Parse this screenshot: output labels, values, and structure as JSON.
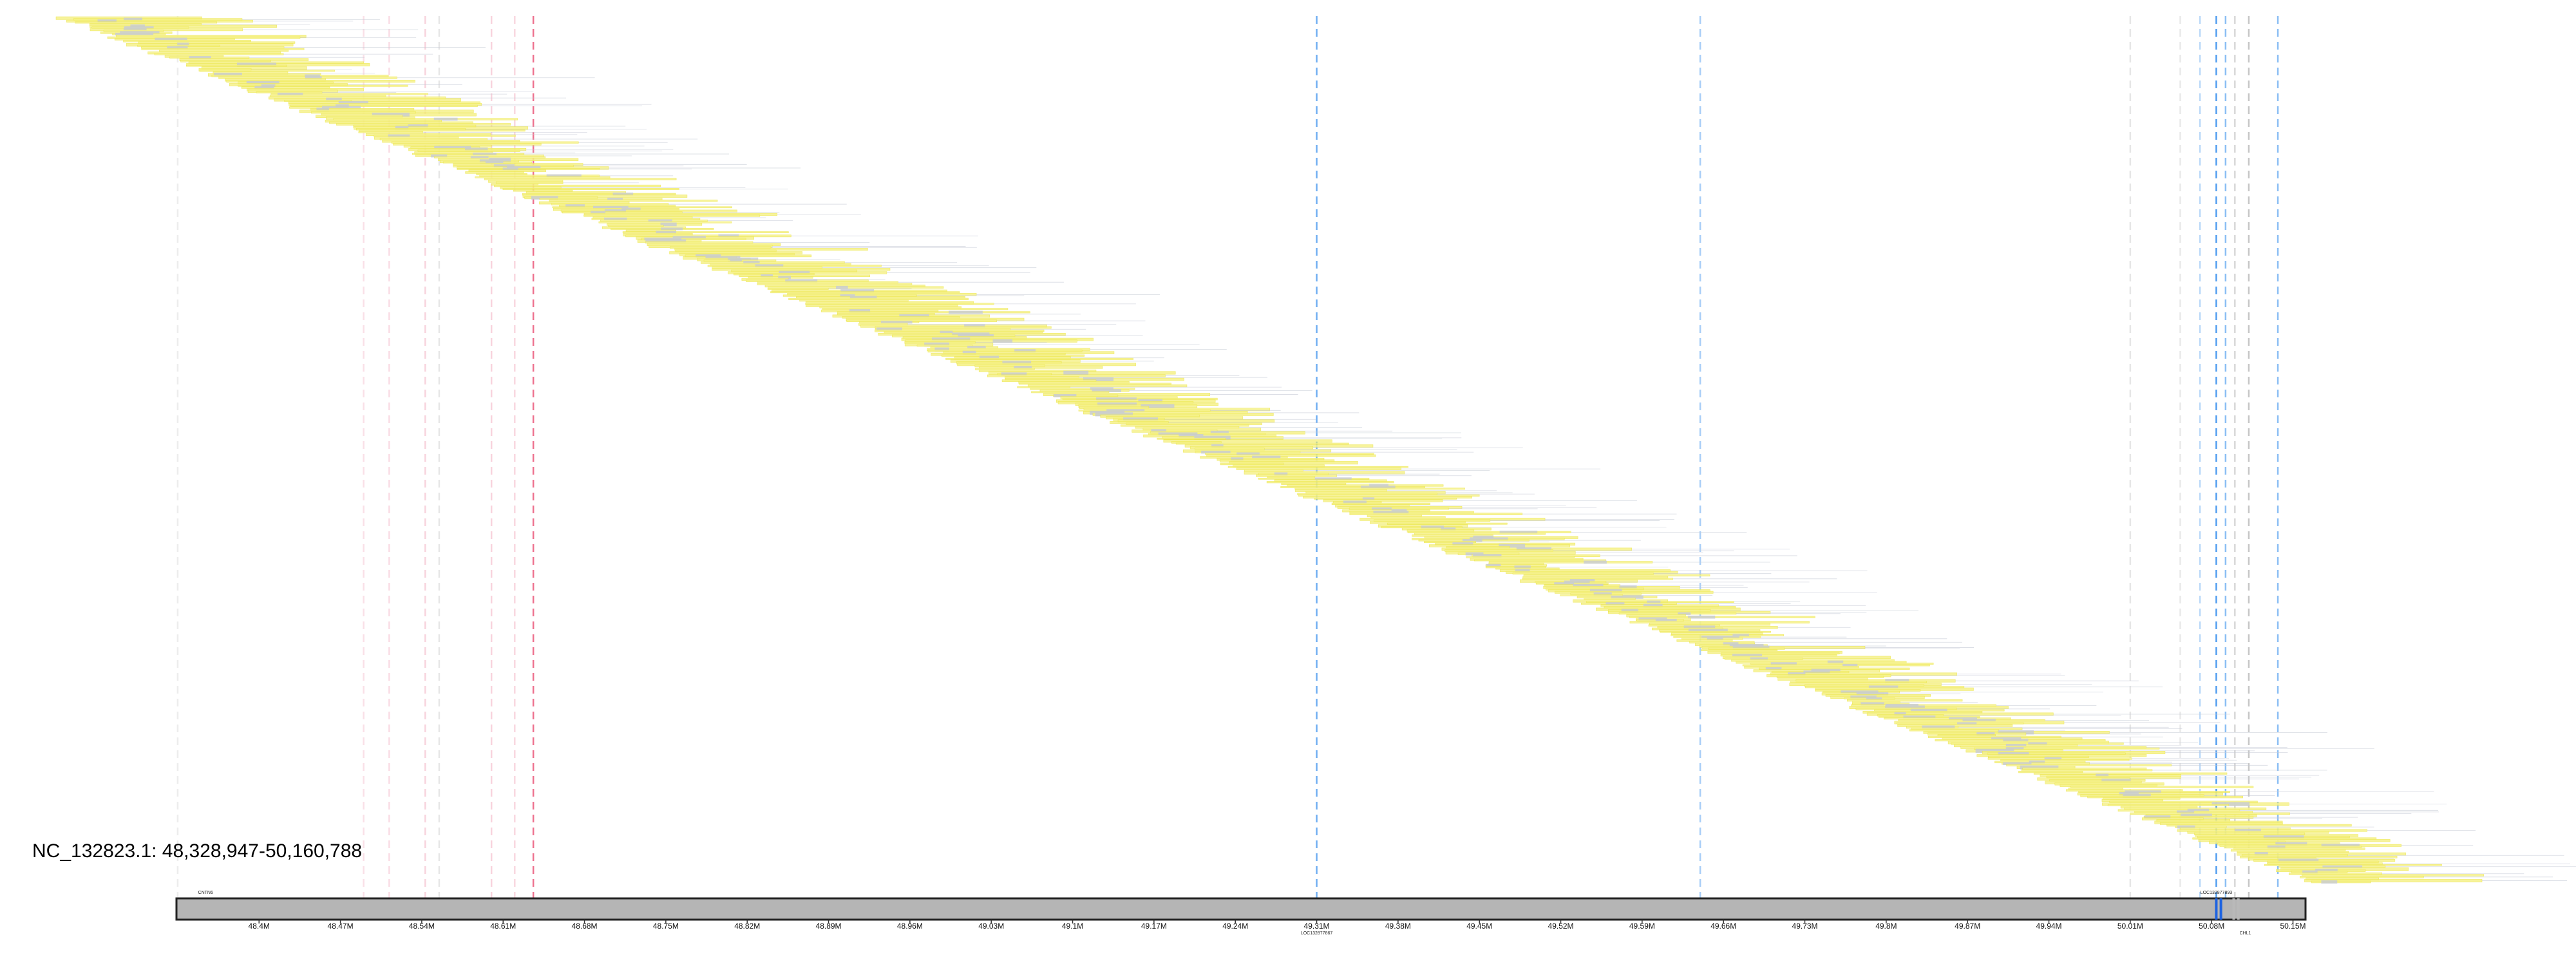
{
  "region": {
    "chromosome": "NC_132823.1",
    "range_text": "48,328,947-50,160,788",
    "start": 48328947,
    "end": 50160788,
    "title": "NC_132823.1: 48,328,947-50,160,788"
  },
  "colors": {
    "read_fill": "#f6f28a",
    "read_outline": "#ece64a",
    "read_gray": "#c7cbd6",
    "ruler_fill": "#b5b5b5",
    "ruler_border": "#222222",
    "gene_blue": "#1e63e0",
    "marker_blue": "#3f93ee",
    "marker_red": "#e8446a",
    "marker_pink": "#f2a9bc",
    "marker_gray": "#b9b9b9"
  },
  "axis_ticks": [
    "48.4M",
    "48.47M",
    "48.54M",
    "48.61M",
    "48.68M",
    "48.75M",
    "48.82M",
    "48.89M",
    "48.96M",
    "49.03M",
    "49.1M",
    "49.17M",
    "49.24M",
    "49.31M",
    "49.38M",
    "49.45M",
    "49.52M",
    "49.59M",
    "49.66M",
    "49.73M",
    "49.8M",
    "49.87M",
    "49.94M",
    "50.01M",
    "50.08M",
    "50.15M"
  ],
  "features": [
    {
      "label": "CNTN6",
      "pos": 48354000,
      "label_side": "above"
    },
    {
      "label": "LOC132877867",
      "pos": 49310000,
      "label_side": "below"
    },
    {
      "label": "LOC132877893",
      "pos": 50084000,
      "label_side": "above"
    },
    {
      "label": "CHL1",
      "pos": 50109000,
      "label_side": "below"
    }
  ],
  "gene_marks": [
    {
      "pos": 50084000,
      "color": "gene_blue"
    },
    {
      "pos": 50088000,
      "color": "gene_blue"
    },
    {
      "pos": 50099000,
      "color": "marker_gray"
    },
    {
      "pos": 50103000,
      "color": "marker_gray"
    }
  ],
  "markers": [
    {
      "pos": 48330000,
      "color": "marker_gray",
      "strength": 0.25
    },
    {
      "pos": 48490000,
      "color": "marker_pink",
      "strength": 0.35
    },
    {
      "pos": 48512000,
      "color": "marker_pink",
      "strength": 0.4
    },
    {
      "pos": 48543000,
      "color": "marker_pink",
      "strength": 0.5
    },
    {
      "pos": 48555000,
      "color": "marker_gray",
      "strength": 0.35
    },
    {
      "pos": 48600000,
      "color": "marker_pink",
      "strength": 0.5
    },
    {
      "pos": 48620000,
      "color": "marker_pink",
      "strength": 0.45
    },
    {
      "pos": 48636000,
      "color": "marker_red",
      "strength": 0.75
    },
    {
      "pos": 49310000,
      "color": "marker_blue",
      "strength": 0.75
    },
    {
      "pos": 49640000,
      "color": "marker_blue",
      "strength": 0.45
    },
    {
      "pos": 50010000,
      "color": "marker_gray",
      "strength": 0.35
    },
    {
      "pos": 50053000,
      "color": "marker_gray",
      "strength": 0.3
    },
    {
      "pos": 50070000,
      "color": "marker_blue",
      "strength": 0.35
    },
    {
      "pos": 50084000,
      "color": "marker_blue",
      "strength": 0.9
    },
    {
      "pos": 50092000,
      "color": "marker_blue",
      "strength": 0.6
    },
    {
      "pos": 50100000,
      "color": "marker_gray",
      "strength": 0.55
    },
    {
      "pos": 50112000,
      "color": "marker_gray",
      "strength": 0.8
    },
    {
      "pos": 50137000,
      "color": "marker_blue",
      "strength": 0.6
    }
  ]
}
